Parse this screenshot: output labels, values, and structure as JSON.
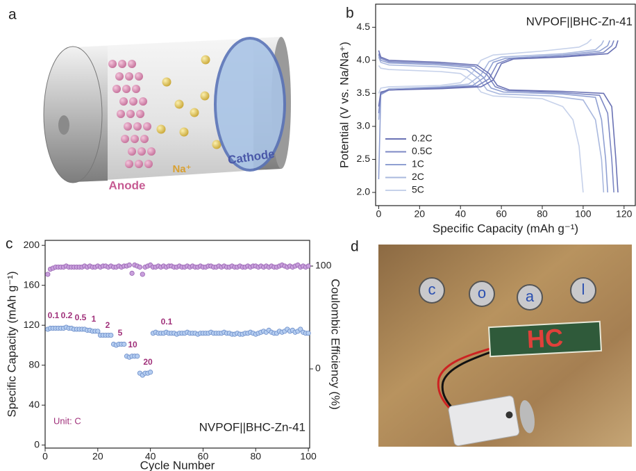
{
  "panels": {
    "a": {
      "label": "a",
      "anode": "Anode",
      "sodium": "Na⁺",
      "cathode": "Cathode"
    },
    "d": {
      "label": "d",
      "letters": [
        "c",
        "o",
        "a",
        "l"
      ],
      "display": "HC"
    }
  },
  "chart_data": [
    {
      "type": "line",
      "label": "b",
      "title": "NVPOF||BHC-Zn-41",
      "x_label": "Specific Capacity (mAh g⁻¹)",
      "y_label": "Potential (V vs. Na/Na⁺)",
      "xlim": [
        -1.5,
        125.5
      ],
      "xticks": [
        0,
        20,
        40,
        60,
        80,
        100,
        120
      ],
      "ylim": [
        1.8,
        4.85
      ],
      "yticks": [
        {
          "value": 2,
          "label": "2.0"
        },
        2.5,
        {
          "value": 3,
          "label": "3.0"
        },
        3.5,
        {
          "value": 4,
          "label": "4.0"
        },
        4.5
      ],
      "legend": "lower left",
      "series": [
        {
          "name": "0.2C",
          "color": "#6a72b4",
          "charge": {
            "x": [
              0,
              1,
              5,
              30,
              50,
              56,
              60,
              66,
              90,
              112,
              116,
              117
            ],
            "values": [
              3.3,
              3.52,
              3.55,
              3.57,
              3.6,
              3.7,
              3.95,
              4.02,
              4.05,
              4.1,
              4.2,
              4.3
            ]
          },
          "discharge": {
            "x": [
              0,
              1,
              5,
              30,
              48,
              54,
              58,
              64,
              90,
              110,
              114,
              116,
              117
            ],
            "values": [
              4.15,
              4.05,
              4.0,
              3.97,
              3.93,
              3.8,
              3.62,
              3.55,
              3.53,
              3.5,
              3.3,
              2.5,
              2.0
            ]
          }
        },
        {
          "name": "0.5C",
          "color": "#7d88c4",
          "charge": {
            "x": [
              0,
              1,
              5,
              30,
              48,
              54,
              58,
              64,
              90,
              110,
              114,
              115
            ],
            "values": [
              3.2,
              3.5,
              3.55,
              3.58,
              3.61,
              3.72,
              3.95,
              4.02,
              4.06,
              4.12,
              4.22,
              4.3
            ]
          },
          "discharge": {
            "x": [
              0,
              1,
              5,
              30,
              47,
              53,
              57,
              63,
              90,
              108,
              112,
              114,
              115
            ],
            "values": [
              4.1,
              4.03,
              3.98,
              3.95,
              3.91,
              3.78,
              3.6,
              3.54,
              3.51,
              3.47,
              3.2,
              2.5,
              2.0
            ]
          }
        },
        {
          "name": "1C",
          "color": "#8f9fd2",
          "charge": {
            "x": [
              0,
              1,
              5,
              30,
              46,
              52,
              56,
              62,
              90,
              108,
              112,
              113
            ],
            "values": [
              2.2,
              3.48,
              3.55,
              3.59,
              3.62,
              3.75,
              3.97,
              4.03,
              4.08,
              4.14,
              4.22,
              4.3
            ]
          },
          "discharge": {
            "x": [
              0,
              1,
              5,
              30,
              45,
              51,
              55,
              61,
              90,
              106,
              109,
              111,
              112
            ],
            "values": [
              4.08,
              4.0,
              3.96,
              3.93,
              3.89,
              3.75,
              3.58,
              3.52,
              3.49,
              3.44,
              3.1,
              2.5,
              2.0
            ]
          }
        },
        {
          "name": "2C",
          "color": "#a9b8de",
          "charge": {
            "x": [
              0,
              1,
              5,
              30,
              44,
              50,
              54,
              60,
              90,
              106,
              109,
              110
            ],
            "values": [
              3.1,
              3.5,
              3.57,
              3.6,
              3.64,
              3.78,
              3.98,
              4.05,
              4.1,
              4.16,
              4.24,
              4.3
            ]
          },
          "discharge": {
            "x": [
              0,
              1,
              5,
              30,
              43,
              49,
              53,
              59,
              85,
              100,
              106,
              109,
              110
            ],
            "values": [
              4.05,
              3.97,
              3.93,
              3.9,
              3.86,
              3.72,
              3.55,
              3.49,
              3.46,
              3.4,
              3.1,
              2.5,
              2.0
            ]
          }
        },
        {
          "name": "5C",
          "color": "#c6d1ea",
          "charge": {
            "x": [
              0,
              1,
              5,
              30,
              40,
              46,
              50,
              56,
              80,
              98,
              102,
              104
            ],
            "values": [
              3.5,
              3.58,
              3.6,
              3.62,
              3.66,
              3.82,
              4.0,
              4.08,
              4.14,
              4.2,
              4.26,
              4.32
            ]
          },
          "discharge": {
            "x": [
              0,
              1,
              5,
              30,
              40,
              46,
              50,
              56,
              80,
              90,
              95,
              98,
              100
            ],
            "values": [
              3.92,
              3.88,
              3.86,
              3.83,
              3.8,
              3.68,
              3.52,
              3.46,
              3.42,
              3.3,
              3.1,
              2.7,
              2.0
            ]
          }
        }
      ]
    },
    {
      "type": "scatter",
      "label": "c",
      "title": "NVPOF||BHC-Zn-41",
      "annotation": "Unit: C",
      "x_label": "Cycle Number",
      "y_label": "Specific Capacity (mAh g⁻¹)",
      "y2_label": "Coulombic Efficiency (%)",
      "xlim": [
        0,
        100.5
      ],
      "xticks": [
        0,
        20,
        40,
        60,
        80,
        100
      ],
      "ylim": [
        -3,
        205
      ],
      "yticks": [
        0,
        40,
        80,
        120,
        160,
        200
      ],
      "y2lim": [
        -77,
        125
      ],
      "y2ticks": [
        0,
        100
      ],
      "rate_labels": [
        "0.1",
        "0.2",
        "0.5",
        "1",
        "2",
        "5",
        "10",
        "20",
        "0.1"
      ],
      "x": [
        1,
        2,
        3,
        4,
        5,
        6,
        7,
        8,
        9,
        10,
        11,
        12,
        13,
        14,
        15,
        16,
        17,
        18,
        19,
        20,
        21,
        22,
        23,
        24,
        25,
        26,
        27,
        28,
        29,
        30,
        31,
        32,
        33,
        34,
        35,
        36,
        37,
        38,
        39,
        40,
        41,
        42,
        43,
        44,
        45,
        46,
        47,
        48,
        49,
        50,
        51,
        52,
        53,
        54,
        55,
        56,
        57,
        58,
        59,
        60,
        61,
        62,
        63,
        64,
        65,
        66,
        67,
        68,
        69,
        70,
        71,
        72,
        73,
        74,
        75,
        76,
        77,
        78,
        79,
        80,
        81,
        82,
        83,
        84,
        85,
        86,
        87,
        88,
        89,
        90,
        91,
        92,
        93,
        94,
        95,
        96,
        97,
        98,
        99,
        100
      ],
      "series": [
        {
          "color": "#b5cdf0",
          "axis": "y",
          "values": [
            116,
            117,
            117,
            117,
            117,
            117,
            117,
            118,
            117,
            117,
            116,
            116,
            116,
            116,
            116,
            115,
            115,
            114,
            114,
            114,
            110,
            110,
            110,
            110,
            110,
            101,
            100,
            101,
            101,
            101,
            89,
            88,
            89,
            89,
            89,
            72,
            70,
            72,
            72,
            73,
            112,
            113,
            112,
            112,
            112,
            113,
            112,
            112,
            112,
            111,
            112,
            112,
            112,
            113,
            112,
            112,
            112,
            111,
            112,
            112,
            112,
            112,
            113,
            112,
            112,
            112,
            112,
            113,
            112,
            112,
            111,
            111,
            112,
            111,
            111,
            112,
            112,
            113,
            112,
            111,
            112,
            113,
            114,
            113,
            115,
            113,
            112,
            112,
            114,
            113,
            114,
            116,
            114,
            115,
            113,
            114,
            116,
            113,
            112,
            112
          ]
        },
        {
          "color": "#c9a0dc",
          "axis": "y2",
          "values": [
            92,
            97,
            98,
            99,
            99,
            99,
            99,
            100,
            99,
            99,
            99,
            99,
            99,
            99,
            100,
            99,
            100,
            99,
            99,
            100,
            99,
            100,
            100,
            99,
            100,
            99,
            99,
            100,
            99,
            100,
            100,
            101,
            93,
            101,
            100,
            99,
            92,
            99,
            100,
            101,
            99,
            99,
            100,
            99,
            100,
            99,
            100,
            100,
            99,
            99,
            100,
            99,
            99,
            100,
            99,
            100,
            99,
            99,
            100,
            99,
            99,
            100,
            100,
            99,
            99,
            100,
            99,
            100,
            99,
            99,
            100,
            99,
            99,
            100,
            99,
            99,
            100,
            99,
            100,
            100,
            99,
            100,
            99,
            100,
            99,
            100,
            99,
            99,
            100,
            101,
            100,
            99,
            100,
            99,
            100,
            101,
            99,
            100,
            99,
            100
          ]
        }
      ]
    }
  ]
}
